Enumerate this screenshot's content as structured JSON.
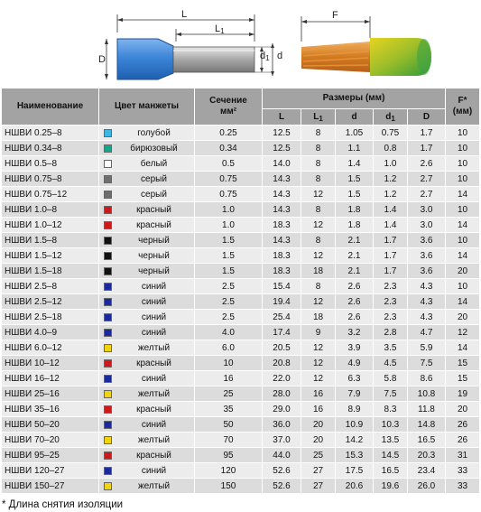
{
  "drawing": {
    "label_L": "L",
    "label_L1": "L",
    "label_L1_sub": "1",
    "label_D": "D",
    "label_d1": "d",
    "label_d1_sub": "1",
    "label_d": "d",
    "label_F": "F"
  },
  "table": {
    "headers": {
      "name": "Наименование",
      "color": "Цвет манжеты",
      "section_l1": "Сечение",
      "section_l2": "мм²",
      "dims": "Размеры (мм)",
      "f_l1": "F*",
      "f_l2": "(мм)",
      "L": "L",
      "L1": "L",
      "L1_sub": "1",
      "d": "d",
      "d1": "d",
      "d1_sub": "1",
      "D": "D"
    },
    "rows": [
      {
        "name": "НШВИ 0.25–8",
        "swatch": "#3ab7e4",
        "color": "голубой",
        "section": "0.25",
        "L": "12.5",
        "L1": "8",
        "d": "1.05",
        "d1": "0.75",
        "D": "1.7",
        "F": "10"
      },
      {
        "name": "НШВИ 0.34–8",
        "swatch": "#14a68a",
        "color": "бирюзовый",
        "section": "0.34",
        "L": "12.5",
        "L1": "8",
        "d": "1.1",
        "d1": "0.8",
        "D": "1.7",
        "F": "10"
      },
      {
        "name": "НШВИ 0.5–8",
        "swatch": "#ffffff",
        "color": "белый",
        "section": "0.5",
        "L": "14.0",
        "L1": "8",
        "d": "1.4",
        "d1": "1.0",
        "D": "2.6",
        "F": "10"
      },
      {
        "name": "НШВИ 0.75–8",
        "swatch": "#6e6e6e",
        "color": "серый",
        "section": "0.75",
        "L": "14.3",
        "L1": "8",
        "d": "1.5",
        "d1": "1.2",
        "D": "2.7",
        "F": "10"
      },
      {
        "name": "НШВИ 0.75–12",
        "swatch": "#6e6e6e",
        "color": "серый",
        "section": "0.75",
        "L": "14.3",
        "L1": "12",
        "d": "1.5",
        "d1": "1.2",
        "D": "2.7",
        "F": "14"
      },
      {
        "name": "НШВИ 1.0–8",
        "swatch": "#d0181c",
        "color": "красный",
        "section": "1.0",
        "L": "14.3",
        "L1": "8",
        "d": "1.8",
        "d1": "1.4",
        "D": "3.0",
        "F": "10"
      },
      {
        "name": "НШВИ 1.0–12",
        "swatch": "#d0181c",
        "color": "красный",
        "section": "1.0",
        "L": "18.3",
        "L1": "12",
        "d": "1.8",
        "d1": "1.4",
        "D": "3.0",
        "F": "14"
      },
      {
        "name": "НШВИ 1.5–8",
        "swatch": "#111111",
        "color": "черный",
        "section": "1.5",
        "L": "14.3",
        "L1": "8",
        "d": "2.1",
        "d1": "1.7",
        "D": "3.6",
        "F": "10"
      },
      {
        "name": "НШВИ 1.5–12",
        "swatch": "#111111",
        "color": "черный",
        "section": "1.5",
        "L": "18.3",
        "L1": "12",
        "d": "2.1",
        "d1": "1.7",
        "D": "3.6",
        "F": "14"
      },
      {
        "name": "НШВИ 1.5–18",
        "swatch": "#111111",
        "color": "черный",
        "section": "1.5",
        "L": "18.3",
        "L1": "18",
        "d": "2.1",
        "d1": "1.7",
        "D": "3.6",
        "F": "20"
      },
      {
        "name": "НШВИ 2.5–8",
        "swatch": "#1a2a9c",
        "color": "синий",
        "section": "2.5",
        "L": "15.4",
        "L1": "8",
        "d": "2.6",
        "d1": "2.3",
        "D": "4.3",
        "F": "10"
      },
      {
        "name": "НШВИ 2.5–12",
        "swatch": "#1a2a9c",
        "color": "синий",
        "section": "2.5",
        "L": "19.4",
        "L1": "12",
        "d": "2.6",
        "d1": "2.3",
        "D": "4.3",
        "F": "14"
      },
      {
        "name": "НШВИ 2.5–18",
        "swatch": "#1a2a9c",
        "color": "синий",
        "section": "2.5",
        "L": "25.4",
        "L1": "18",
        "d": "2.6",
        "d1": "2.3",
        "D": "4.3",
        "F": "20"
      },
      {
        "name": "НШВИ 4.0–9",
        "swatch": "#1a2a9c",
        "color": "синий",
        "section": "4.0",
        "L": "17.4",
        "L1": "9",
        "d": "3.2",
        "d1": "2.8",
        "D": "4.7",
        "F": "12"
      },
      {
        "name": "НШВИ 6.0–12",
        "swatch": "#f2d30f",
        "color": "желтый",
        "section": "6.0",
        "L": "20.5",
        "L1": "12",
        "d": "3.9",
        "d1": "3.5",
        "D": "5.9",
        "F": "14"
      },
      {
        "name": "НШВИ 10–12",
        "swatch": "#d0181c",
        "color": "красный",
        "section": "10",
        "L": "20.8",
        "L1": "12",
        "d": "4.9",
        "d1": "4.5",
        "D": "7.5",
        "F": "15"
      },
      {
        "name": "НШВИ 16–12",
        "swatch": "#1a2a9c",
        "color": "синий",
        "section": "16",
        "L": "22.0",
        "L1": "12",
        "d": "6.3",
        "d1": "5.8",
        "D": "8.6",
        "F": "15"
      },
      {
        "name": "НШВИ 25–16",
        "swatch": "#f2d30f",
        "color": "желтый",
        "section": "25",
        "L": "28.0",
        "L1": "16",
        "d": "7.9",
        "d1": "7.5",
        "D": "10.8",
        "F": "19"
      },
      {
        "name": "НШВИ 35–16",
        "swatch": "#d0181c",
        "color": "красный",
        "section": "35",
        "L": "29.0",
        "L1": "16",
        "d": "8.9",
        "d1": "8.3",
        "D": "11.8",
        "F": "20"
      },
      {
        "name": "НШВИ 50–20",
        "swatch": "#1a2a9c",
        "color": "синий",
        "section": "50",
        "L": "36.0",
        "L1": "20",
        "d": "10.9",
        "d1": "10.3",
        "D": "14.8",
        "F": "26"
      },
      {
        "name": "НШВИ 70–20",
        "swatch": "#f2d30f",
        "color": "желтый",
        "section": "70",
        "L": "37.0",
        "L1": "20",
        "d": "14.2",
        "d1": "13.5",
        "D": "16.5",
        "F": "26"
      },
      {
        "name": "НШВИ 95–25",
        "swatch": "#d0181c",
        "color": "красный",
        "section": "95",
        "L": "44.0",
        "L1": "25",
        "d": "15.3",
        "d1": "14.5",
        "D": "20.3",
        "F": "31"
      },
      {
        "name": "НШВИ 120–27",
        "swatch": "#1a2a9c",
        "color": "синий",
        "section": "120",
        "L": "52.6",
        "L1": "27",
        "d": "17.5",
        "d1": "16.5",
        "D": "23.4",
        "F": "33"
      },
      {
        "name": "НШВИ 150–27",
        "swatch": "#f2d30f",
        "color": "желтый",
        "section": "150",
        "L": "52.6",
        "L1": "27",
        "d": "20.6",
        "d1": "19.6",
        "D": "26.0",
        "F": "33"
      }
    ]
  },
  "footnote": "* Длина снятия изоляции"
}
